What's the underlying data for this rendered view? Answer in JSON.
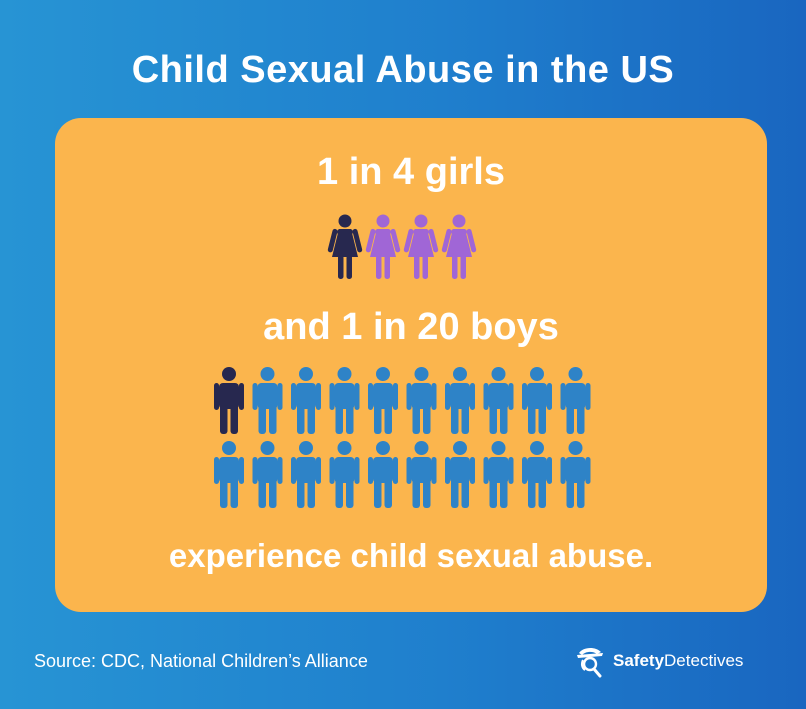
{
  "title": "Child Sexual Abuse in the US",
  "stats": {
    "girls": "1 in 4 girls",
    "boys": "and 1 in 20 boys",
    "caption": "experience child sexual abuse."
  },
  "icons": {
    "girl_count": 4,
    "girl_highlighted": 1,
    "boy_count": 20,
    "boy_highlighted": 1,
    "girl_icon": "girl-figure-icon",
    "boy_icon": "boy-figure-icon"
  },
  "colors": {
    "background_start": "#2794d4",
    "background_end": "#1966c0",
    "card": "#fbb54d",
    "highlight_figure": "#27284f",
    "girl_figure": "#a066d6",
    "boy_figure": "#2e83c7",
    "text": "#ffffff"
  },
  "footer": {
    "source": "Source: CDC, National Children’s Alliance",
    "brand_bold": "Safety",
    "brand_light": "Detectives",
    "brand_icon": "detective-hat-logo-icon"
  }
}
